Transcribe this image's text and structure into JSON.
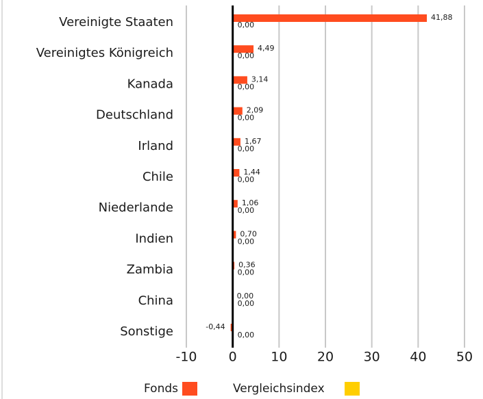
{
  "chart_data": {
    "type": "bar",
    "orientation": "horizontal",
    "categories": [
      "Vereinigte Staaten",
      "Vereinigtes Königreich",
      "Kanada",
      "Deutschland",
      "Irland",
      "Chile",
      "Niederlande",
      "Indien",
      "Zambia",
      "China",
      "Sonstige"
    ],
    "series": [
      {
        "name": "Fonds",
        "color": "#ff4c1f",
        "values": [
          41.88,
          4.49,
          3.14,
          2.09,
          1.67,
          1.44,
          1.06,
          0.7,
          0.36,
          0.0,
          -0.44
        ],
        "value_labels": [
          "41,88",
          "4,49",
          "3,14",
          "2,09",
          "1,67",
          "1,44",
          "1,06",
          "0,70",
          "0,36",
          "0,00",
          "-0,44"
        ]
      },
      {
        "name": "Vergleichsindex",
        "color": "#ffce00",
        "values": [
          0,
          0,
          0,
          0,
          0,
          0,
          0,
          0,
          0,
          0,
          0
        ],
        "value_labels": [
          "0,00",
          "0,00",
          "0,00",
          "0,00",
          "0,00",
          "0,00",
          "0,00",
          "0,00",
          "0,00",
          "0,00",
          "0,00"
        ]
      }
    ],
    "xlim": [
      -10,
      50
    ],
    "xticks": [
      -10,
      0,
      10,
      20,
      30,
      40,
      50
    ],
    "grid": true
  }
}
